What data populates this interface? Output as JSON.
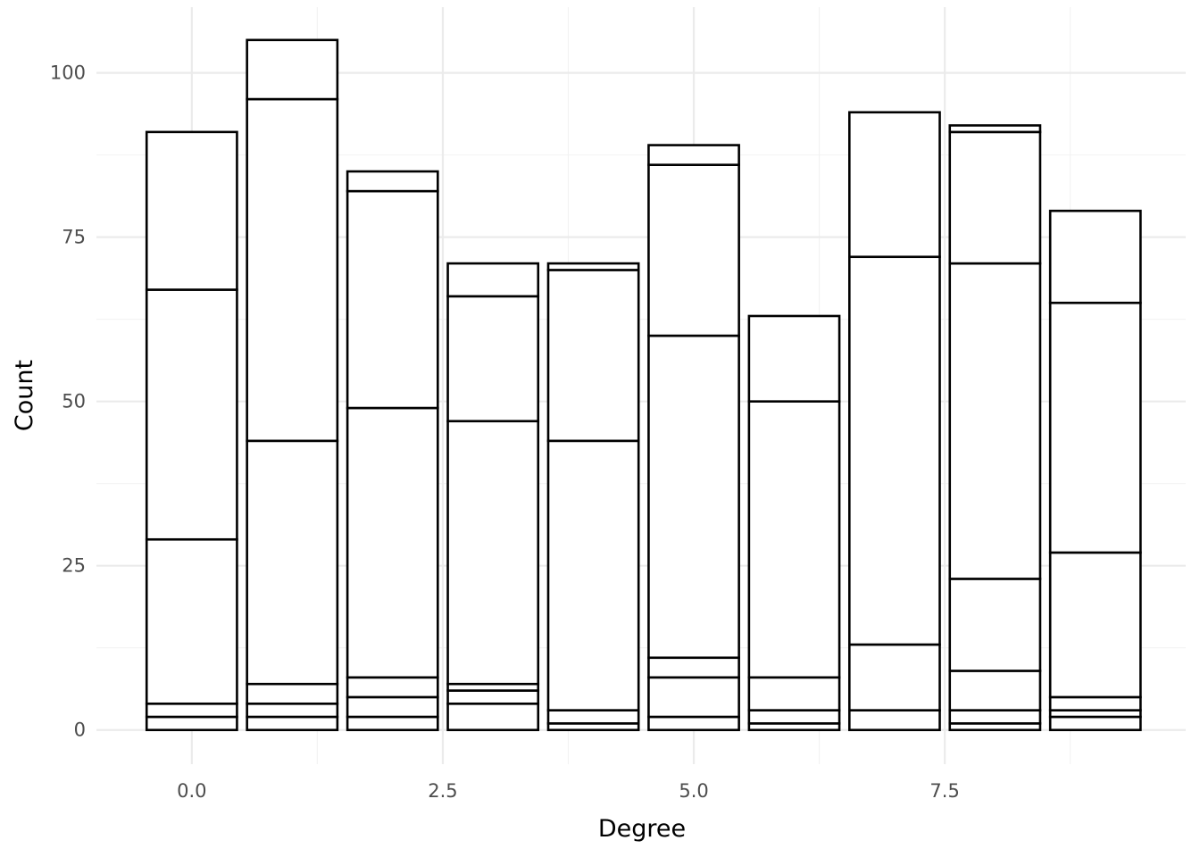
{
  "chart_data": {
    "type": "bar",
    "stacked": true,
    "xlabel": "Degree",
    "ylabel": "Count",
    "xlim": [
      -0.95,
      9.9
    ],
    "ylim": [
      -5.2,
      110
    ],
    "x_ticks": [
      0,
      2.5,
      5,
      7.5
    ],
    "x_tick_labels": [
      "0.0",
      "2.5",
      "5.0",
      "7.5"
    ],
    "y_ticks": [
      0,
      25,
      50,
      75,
      100
    ],
    "y_tick_labels": [
      "0",
      "25",
      "50",
      "75",
      "100"
    ],
    "grid": true,
    "legend": "none",
    "bar_width": 0.9,
    "bar_fill": "#ffffff",
    "bar_outline": "#000000",
    "bars": [
      {
        "x": 0,
        "values": [
          2,
          2,
          25,
          38,
          24
        ]
      },
      {
        "x": 1,
        "values": [
          2,
          2,
          3,
          37,
          52,
          9
        ]
      },
      {
        "x": 2,
        "values": [
          2,
          3,
          3,
          41,
          33,
          3
        ]
      },
      {
        "x": 3,
        "values": [
          4,
          2,
          1,
          40,
          19,
          5
        ]
      },
      {
        "x": 4,
        "values": [
          1,
          2,
          41,
          26,
          1
        ]
      },
      {
        "x": 5,
        "values": [
          2,
          6,
          3,
          49,
          26,
          3
        ]
      },
      {
        "x": 6,
        "values": [
          1,
          2,
          5,
          42,
          13
        ]
      },
      {
        "x": 7,
        "values": [
          3,
          10,
          59,
          22
        ]
      },
      {
        "x": 8,
        "values": [
          1,
          2,
          6,
          14,
          48,
          20,
          1
        ]
      },
      {
        "x": 9,
        "values": [
          2,
          1,
          2,
          22,
          38,
          14
        ]
      }
    ]
  }
}
